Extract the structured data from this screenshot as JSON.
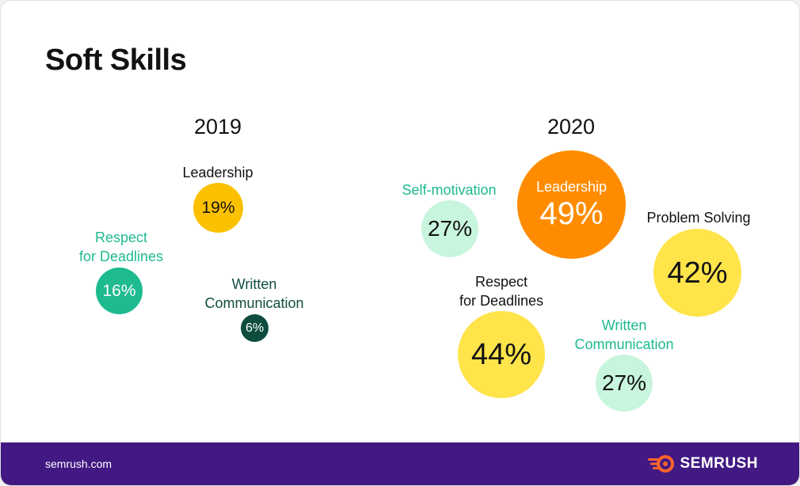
{
  "title": "Soft Skills",
  "footer": {
    "site": "semrush.com",
    "brand": "SEMRUSH"
  },
  "colors": {
    "yellow_dark": "#FBC100",
    "yellow": "#FFE44A",
    "orange": "#FF8C00",
    "teal": "#1EBA90",
    "mint": "#C8F5DD",
    "dark_green": "#0E4D3E",
    "footer_bg": "#421983",
    "logo_orange": "#FF642D"
  },
  "chart_data": [
    {
      "type": "bubble",
      "title": "2019",
      "unit": "%",
      "series": [
        {
          "name": "Leadership",
          "value": 19
        },
        {
          "name": "Respect for Deadlines",
          "value": 16
        },
        {
          "name": "Written Communication",
          "value": 6
        }
      ]
    },
    {
      "type": "bubble",
      "title": "2020",
      "unit": "%",
      "series": [
        {
          "name": "Self-motivation",
          "value": 27
        },
        {
          "name": "Leadership",
          "value": 49
        },
        {
          "name": "Problem Solving",
          "value": 42
        },
        {
          "name": "Respect for Deadlines",
          "value": 44
        },
        {
          "name": "Written Communication",
          "value": 27
        }
      ]
    }
  ],
  "labels": {
    "y2019": {
      "leadership": "Leadership",
      "respect_line1": "Respect",
      "respect_line2": "for Deadlines",
      "written_line1": "Written",
      "written_line2": "Communication"
    },
    "y2020": {
      "self_motivation": "Self-motivation",
      "leadership": "Leadership",
      "problem_solving": "Problem Solving",
      "respect_line1": "Respect",
      "respect_line2": "for Deadlines",
      "written_line1": "Written",
      "written_line2": "Communication"
    }
  },
  "display": {
    "y2019": {
      "leadership": "19%",
      "respect": "16%",
      "written": "6%"
    },
    "y2020": {
      "self_motivation": "27%",
      "leadership": "49%",
      "problem_solving": "42%",
      "respect": "44%",
      "written": "27%"
    }
  }
}
